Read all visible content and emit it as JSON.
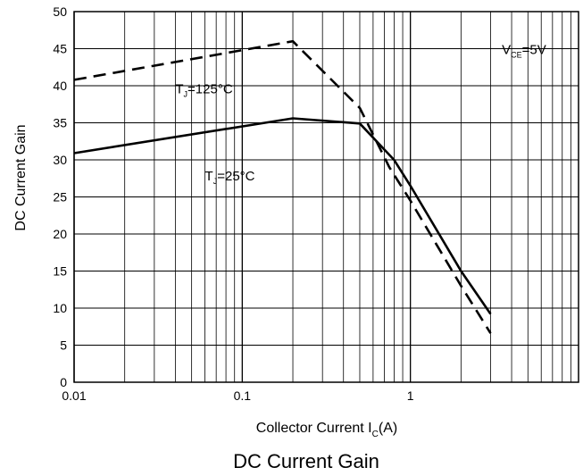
{
  "chart_data": {
    "type": "line",
    "title": "DC Current Gain",
    "xlabel": {
      "main": "Collector Current I",
      "sub": "C",
      "tail": "(A)"
    },
    "ylabel": "DC Current Gain",
    "x_scale": "log",
    "xlim": [
      0.01,
      10
    ],
    "ylim": [
      0,
      50
    ],
    "x_ticks": [
      {
        "value": 0.01,
        "label": "0.01"
      },
      {
        "value": 0.1,
        "label": "0.1"
      },
      {
        "value": 1,
        "label": "1"
      }
    ],
    "y_ticks": [
      0,
      5,
      10,
      15,
      20,
      25,
      30,
      35,
      40,
      45,
      50
    ],
    "grid": true,
    "series": [
      {
        "id": "tj125",
        "style": "dashed",
        "points": [
          [
            0.01,
            40.8
          ],
          [
            0.2,
            46.0
          ],
          [
            0.5,
            37.0
          ],
          [
            0.75,
            29.0
          ],
          [
            1.0,
            24.5
          ],
          [
            2.0,
            13.0
          ],
          [
            3.0,
            6.6
          ]
        ]
      },
      {
        "id": "tj25",
        "style": "solid",
        "points": [
          [
            0.01,
            30.9
          ],
          [
            0.2,
            35.6
          ],
          [
            0.5,
            34.9
          ],
          [
            0.8,
            30.0
          ],
          [
            1.0,
            26.5
          ],
          [
            2.0,
            15.0
          ],
          [
            3.0,
            9.2
          ]
        ]
      }
    ],
    "annotations": [
      {
        "id": "ann-tj125",
        "main": "T",
        "sub": "J",
        "tail": "=125°C",
        "x": 0.04,
        "y": 39.0
      },
      {
        "id": "ann-tj25",
        "main": "T",
        "sub": "J",
        "tail": "=25°C",
        "x": 0.06,
        "y": 27.2
      },
      {
        "id": "ann-vce",
        "main": "V",
        "sub": "CE",
        "tail": "=5V",
        "x": 3.5,
        "y": 44.3
      }
    ]
  }
}
